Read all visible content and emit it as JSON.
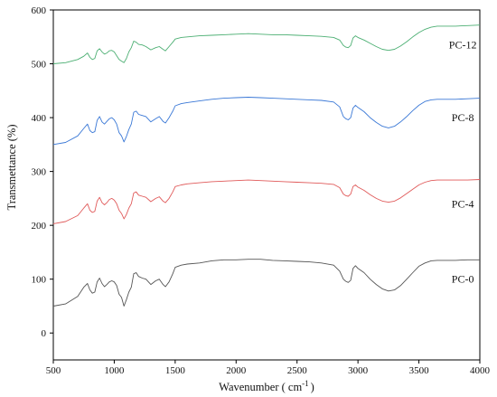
{
  "chart_data": {
    "type": "line",
    "title": "",
    "xlabel": "Wavenumber ( cm",
    "xlabel_sup": "-1",
    "xlabel_close": ")",
    "ylabel": "Transmettance (%)",
    "xlim": [
      500,
      4000
    ],
    "ylim": [
      -50,
      600
    ],
    "xticks": [
      500,
      1000,
      1500,
      2000,
      2500,
      3000,
      3500,
      4000
    ],
    "yticks": [
      0,
      100,
      200,
      300,
      400,
      500,
      600
    ],
    "grid": false,
    "series": [
      {
        "name": "PC-0",
        "color": "#555555",
        "label_x": 3860,
        "label_y": 100,
        "x": [
          500,
          600,
          700,
          750,
          780,
          800,
          820,
          840,
          860,
          880,
          900,
          920,
          940,
          960,
          980,
          1000,
          1020,
          1040,
          1060,
          1080,
          1100,
          1120,
          1140,
          1160,
          1180,
          1200,
          1230,
          1260,
          1300,
          1340,
          1370,
          1400,
          1420,
          1450,
          1480,
          1500,
          1550,
          1600,
          1700,
          1800,
          1900,
          2000,
          2100,
          2200,
          2300,
          2400,
          2500,
          2600,
          2700,
          2800,
          2850,
          2880,
          2900,
          2920,
          2940,
          2960,
          2980,
          3000,
          3050,
          3100,
          3150,
          3200,
          3250,
          3300,
          3350,
          3400,
          3450,
          3500,
          3550,
          3600,
          3650,
          3700,
          3800,
          3900,
          4000
        ],
        "y": [
          50,
          54,
          68,
          85,
          92,
          80,
          74,
          76,
          95,
          102,
          92,
          86,
          90,
          95,
          97,
          95,
          88,
          72,
          66,
          50,
          62,
          76,
          85,
          110,
          112,
          105,
          102,
          100,
          90,
          97,
          100,
          90,
          86,
          95,
          110,
          122,
          126,
          128,
          130,
          134,
          136,
          136,
          137,
          137,
          135,
          134,
          133,
          132,
          130,
          126,
          115,
          100,
          96,
          94,
          98,
          120,
          125,
          120,
          112,
          100,
          90,
          82,
          78,
          80,
          88,
          100,
          112,
          124,
          130,
          134,
          135,
          135,
          135,
          136,
          136
        ]
      },
      {
        "name": "PC-4",
        "color": "#e05a5a",
        "label_x": 3860,
        "label_y": 240,
        "x": [
          500,
          600,
          700,
          750,
          780,
          800,
          820,
          840,
          860,
          880,
          900,
          920,
          940,
          960,
          980,
          1000,
          1020,
          1040,
          1060,
          1080,
          1100,
          1120,
          1140,
          1160,
          1180,
          1200,
          1230,
          1260,
          1300,
          1340,
          1370,
          1400,
          1420,
          1450,
          1480,
          1500,
          1550,
          1600,
          1700,
          1800,
          1900,
          2000,
          2100,
          2200,
          2300,
          2400,
          2500,
          2600,
          2700,
          2800,
          2850,
          2880,
          2900,
          2920,
          2940,
          2960,
          2980,
          3000,
          3050,
          3100,
          3150,
          3200,
          3250,
          3300,
          3350,
          3400,
          3450,
          3500,
          3550,
          3600,
          3650,
          3700,
          3800,
          3900,
          4000
        ],
        "y": [
          203,
          207,
          218,
          232,
          240,
          228,
          224,
          226,
          245,
          252,
          242,
          238,
          242,
          248,
          250,
          247,
          240,
          228,
          222,
          212,
          220,
          232,
          240,
          260,
          262,
          256,
          254,
          252,
          244,
          250,
          253,
          245,
          242,
          250,
          262,
          272,
          275,
          277,
          279,
          281,
          282,
          283,
          284,
          283,
          282,
          281,
          280,
          279,
          278,
          276,
          270,
          258,
          255,
          254,
          258,
          272,
          275,
          271,
          265,
          257,
          250,
          245,
          243,
          245,
          251,
          259,
          267,
          275,
          280,
          283,
          284,
          284,
          284,
          284,
          285
        ]
      },
      {
        "name": "PC-8",
        "color": "#3a78d6",
        "label_x": 3860,
        "label_y": 400,
        "x": [
          500,
          600,
          700,
          750,
          780,
          800,
          820,
          840,
          860,
          880,
          900,
          920,
          940,
          960,
          980,
          1000,
          1020,
          1040,
          1060,
          1080,
          1100,
          1120,
          1140,
          1160,
          1180,
          1200,
          1230,
          1260,
          1300,
          1340,
          1370,
          1400,
          1420,
          1450,
          1480,
          1500,
          1550,
          1600,
          1700,
          1800,
          1900,
          2000,
          2100,
          2200,
          2300,
          2400,
          2500,
          2600,
          2700,
          2800,
          2850,
          2880,
          2900,
          2920,
          2940,
          2960,
          2980,
          3000,
          3050,
          3100,
          3150,
          3200,
          3250,
          3300,
          3350,
          3400,
          3450,
          3500,
          3550,
          3600,
          3650,
          3700,
          3800,
          3900,
          4000
        ],
        "y": [
          350,
          354,
          366,
          380,
          388,
          376,
          372,
          374,
          395,
          402,
          392,
          388,
          393,
          398,
          400,
          396,
          388,
          372,
          366,
          355,
          365,
          378,
          388,
          410,
          412,
          406,
          404,
          402,
          392,
          398,
          402,
          393,
          390,
          400,
          412,
          422,
          426,
          428,
          431,
          434,
          436,
          437,
          438,
          437,
          436,
          435,
          434,
          433,
          432,
          429,
          420,
          402,
          398,
          396,
          400,
          418,
          423,
          419,
          411,
          400,
          391,
          384,
          381,
          384,
          392,
          402,
          413,
          423,
          430,
          433,
          434,
          434,
          434,
          435,
          436
        ]
      },
      {
        "name": "PC-12",
        "color": "#4caf73",
        "label_x": 3860,
        "label_y": 535,
        "x": [
          500,
          600,
          700,
          750,
          780,
          800,
          820,
          840,
          860,
          880,
          900,
          920,
          940,
          960,
          980,
          1000,
          1020,
          1040,
          1060,
          1080,
          1100,
          1120,
          1140,
          1160,
          1180,
          1200,
          1230,
          1260,
          1300,
          1340,
          1370,
          1400,
          1420,
          1450,
          1480,
          1500,
          1550,
          1600,
          1700,
          1800,
          1900,
          2000,
          2100,
          2200,
          2300,
          2400,
          2500,
          2600,
          2700,
          2800,
          2850,
          2880,
          2900,
          2920,
          2940,
          2960,
          2980,
          3000,
          3050,
          3100,
          3150,
          3200,
          3250,
          3300,
          3350,
          3400,
          3450,
          3500,
          3550,
          3600,
          3650,
          3700,
          3800,
          3900,
          4000
        ],
        "y": [
          500,
          502,
          508,
          514,
          520,
          512,
          508,
          510,
          524,
          528,
          522,
          518,
          520,
          524,
          525,
          522,
          515,
          508,
          505,
          502,
          510,
          522,
          530,
          542,
          540,
          536,
          535,
          532,
          526,
          530,
          532,
          527,
          524,
          532,
          540,
          546,
          549,
          550,
          552,
          553,
          554,
          555,
          556,
          555,
          554,
          554,
          553,
          552,
          551,
          549,
          544,
          534,
          531,
          530,
          534,
          548,
          552,
          549,
          544,
          538,
          532,
          527,
          525,
          527,
          533,
          541,
          550,
          558,
          564,
          568,
          570,
          570,
          570,
          571,
          572
        ]
      }
    ]
  }
}
